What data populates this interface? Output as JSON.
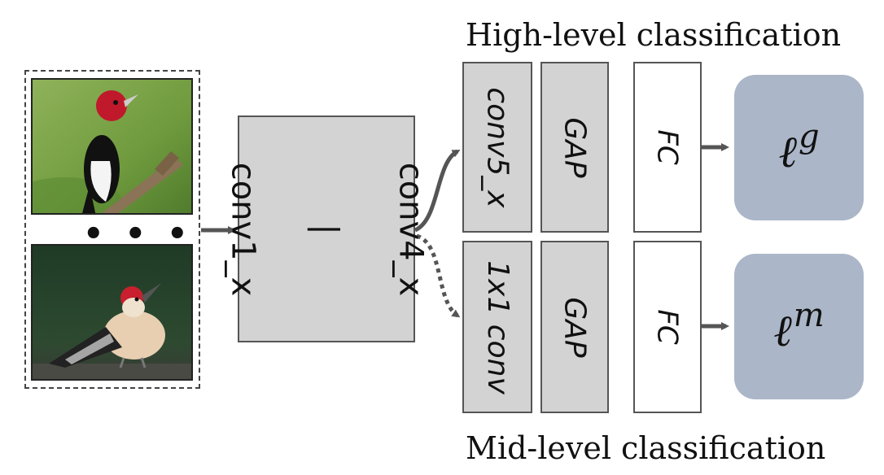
{
  "titles": {
    "high": "High-level classification",
    "mid": "Mid-level classification"
  },
  "backbone": {
    "top": "conv4_x",
    "sep": "|",
    "bottom": "conv1_x"
  },
  "ellipsis": "• • •",
  "high_branch": {
    "conv": "conv5_x",
    "pool": "GAP",
    "fc": "FC",
    "loss_base": "ℓ",
    "loss_sup": "g"
  },
  "mid_branch": {
    "conv": "1x1 conv",
    "pool": "GAP",
    "fc": "FC",
    "loss_base": "ℓ",
    "loss_sup": "m"
  },
  "images": [
    {
      "icon": "woodpecker-photo-perched"
    },
    {
      "icon": "woodpecker-photo-ground"
    }
  ],
  "colors": {
    "block_fill": "#d3d3d3",
    "loss_fill": "#abb6c8",
    "arrow": "#555555"
  }
}
